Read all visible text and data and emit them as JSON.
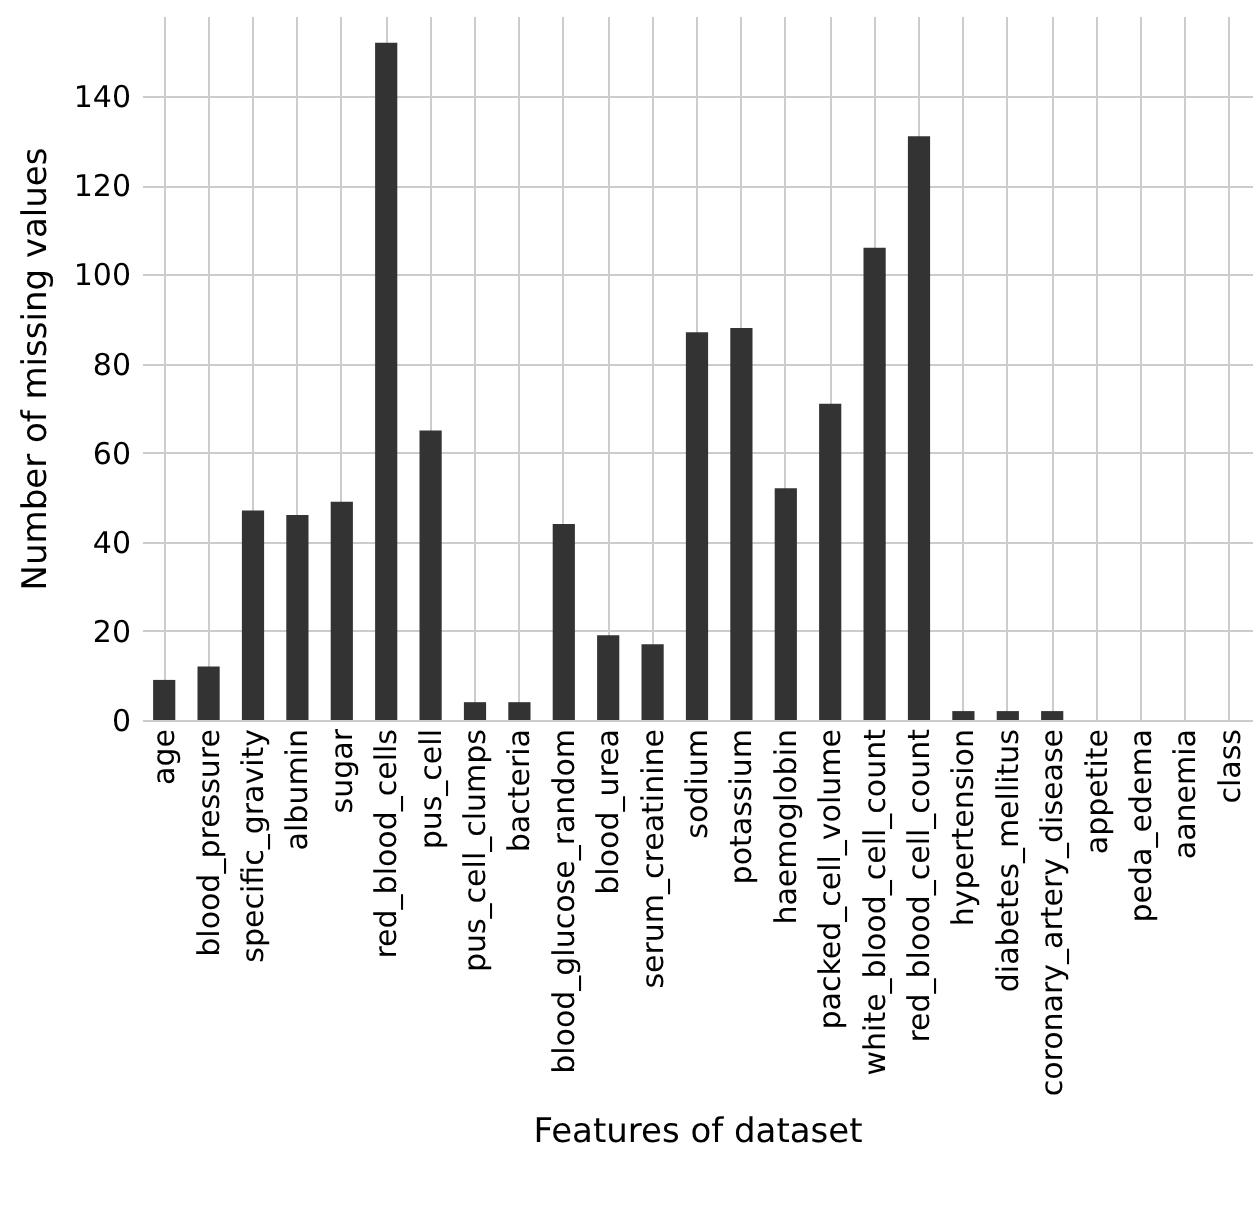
{
  "chart_data": {
    "type": "bar",
    "xlabel": "Features of dataset",
    "ylabel": "Number of missing values",
    "categories": [
      "age",
      "blood_pressure",
      "specific_gravity",
      "albumin",
      "sugar",
      "red_blood_cells",
      "pus_cell",
      "pus_cell_clumps",
      "bacteria",
      "blood_glucose_random",
      "blood_urea",
      "serum_creatinine",
      "sodium",
      "potassium",
      "haemoglobin",
      "packed_cell_volume",
      "white_blood_cell_count",
      "red_blood_cell_count",
      "hypertension",
      "diabetes_mellitus",
      "coronary_artery_disease",
      "appetite",
      "peda_edema",
      "aanemia",
      "class"
    ],
    "values": [
      9,
      12,
      47,
      46,
      49,
      152,
      65,
      4,
      4,
      44,
      19,
      17,
      87,
      88,
      52,
      71,
      106,
      131,
      2,
      2,
      2,
      0,
      0,
      0,
      0
    ],
    "color": "#333333",
    "ylim": [
      0,
      158
    ],
    "yticks": [
      0,
      20,
      40,
      60,
      80,
      100,
      120,
      140
    ],
    "grid": true
  }
}
